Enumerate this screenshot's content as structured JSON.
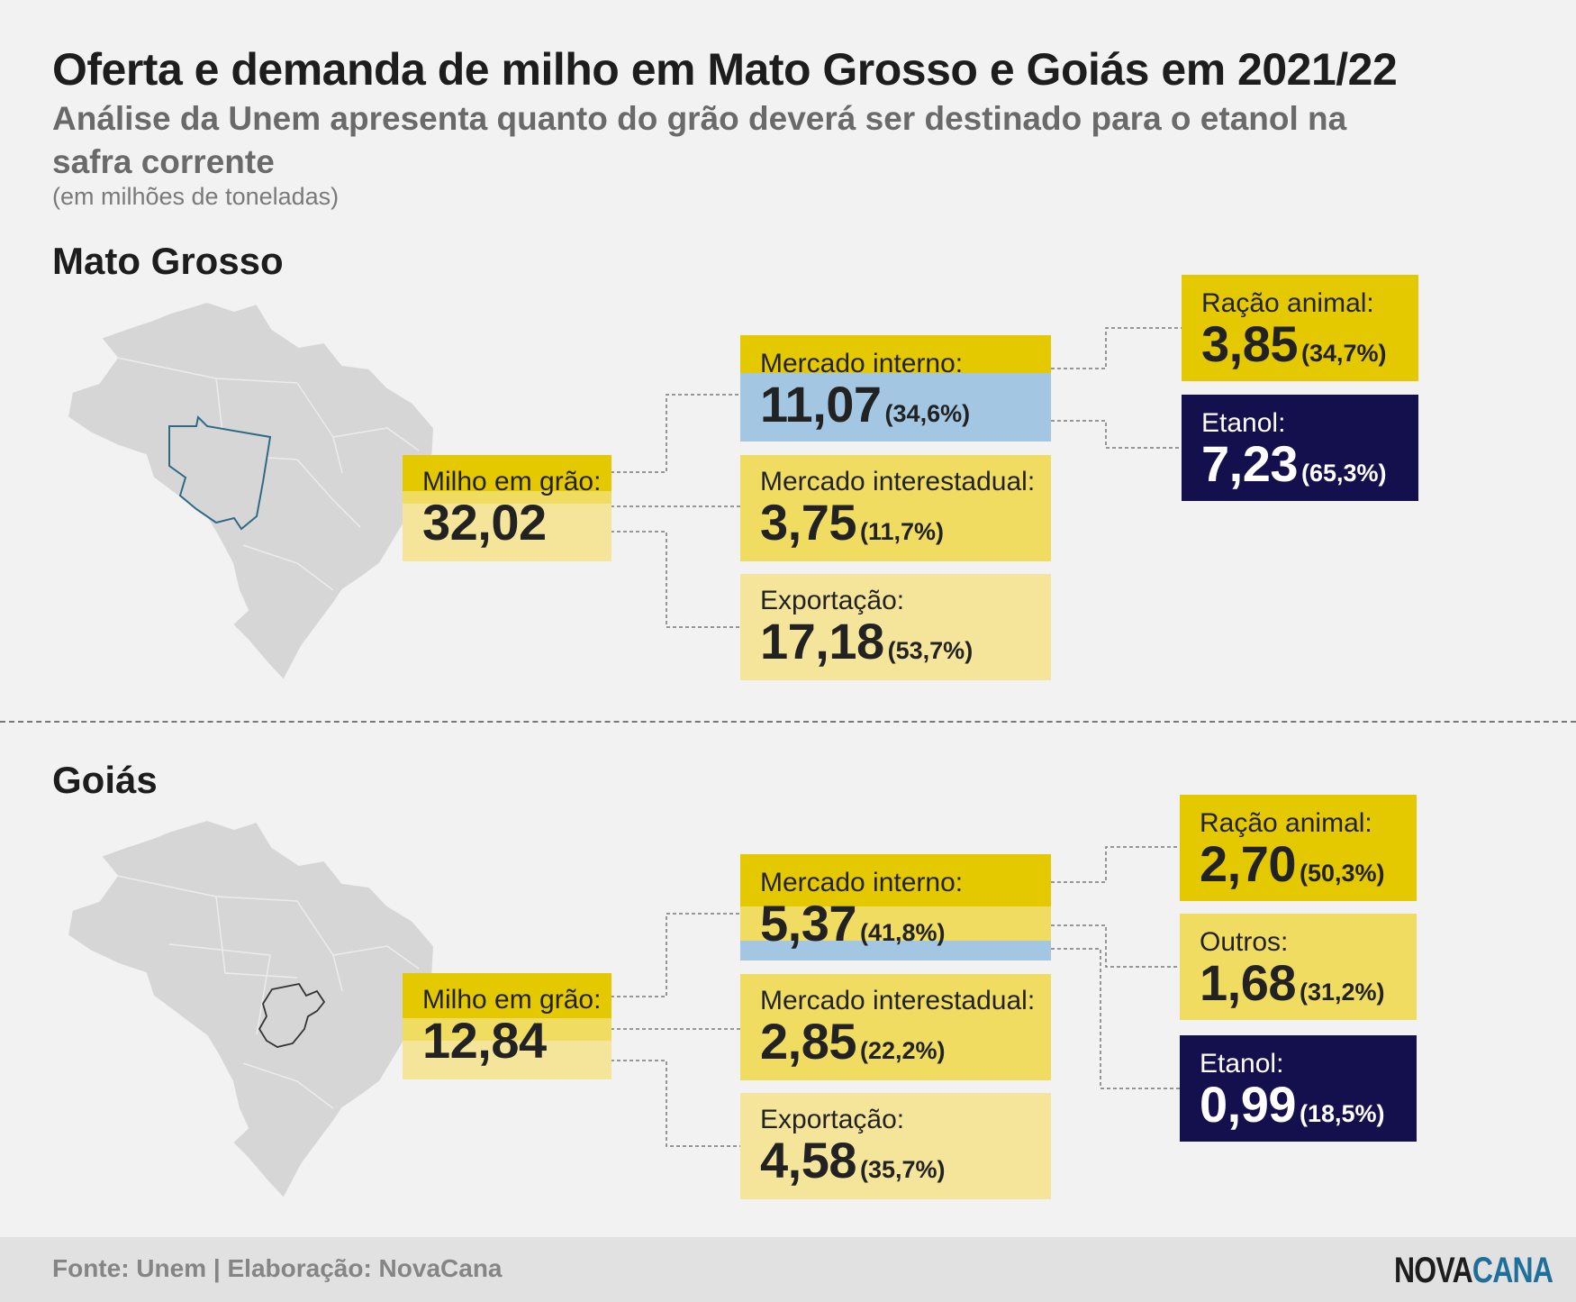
{
  "title": "Oferta e demanda de milho em Mato Grosso e Goiás em 2021/22",
  "subtitle": "Análise da Unem apresenta quanto do grão deverá ser destinado para o etanol na safra corrente",
  "unit": "(em milhões de toneladas)",
  "colors": {
    "dark_yellow": "#e4c800",
    "mid_yellow": "#efdc60",
    "light_yellow": "#f5e59a",
    "blue": "#a3c6e2",
    "navy": "#14104e",
    "map_gray": "#d6d6d6",
    "logo_blue": "#1f6f9c"
  },
  "sections": [
    {
      "name": "Mato Grosso",
      "map_icon": "brazil-map-mato-grosso-highlight",
      "milho": {
        "label": "Milho em grão:",
        "value": "32,02"
      },
      "mercado_interno": {
        "label": "Mercado interno:",
        "value": "11,07",
        "pct": "(34,6%)"
      },
      "mercado_interestadual": {
        "label": "Mercado interestadual:",
        "value": "3,75",
        "pct": "(11,7%)"
      },
      "exportacao": {
        "label": "Exportação:",
        "value": "17,18",
        "pct": "(53,7%)"
      },
      "destinations": [
        {
          "label": "Ração animal:",
          "value": "3,85",
          "pct": "(34,7%)",
          "style": "dark-yellow"
        },
        {
          "label": "Etanol:",
          "value": "7,23",
          "pct": "(65,3%)",
          "style": "navy"
        }
      ]
    },
    {
      "name": "Goiás",
      "map_icon": "brazil-map-goias-highlight",
      "milho": {
        "label": "Milho em grão:",
        "value": "12,84"
      },
      "mercado_interno": {
        "label": "Mercado interno:",
        "value": "5,37",
        "pct": "(41,8%)"
      },
      "mercado_interestadual": {
        "label": "Mercado interestadual:",
        "value": "2,85",
        "pct": "(22,2%)"
      },
      "exportacao": {
        "label": "Exportação:",
        "value": "4,58",
        "pct": "(35,7%)"
      },
      "destinations": [
        {
          "label": "Ração animal:",
          "value": "2,70",
          "pct": "(50,3%)",
          "style": "dark-yellow"
        },
        {
          "label": "Outros:",
          "value": "1,68",
          "pct": "(31,2%)",
          "style": "mid-yellow"
        },
        {
          "label": "Etanol:",
          "value": "0,99",
          "pct": "(18,5%)",
          "style": "navy"
        }
      ]
    }
  ],
  "footer": {
    "source": "Fonte: Unem | Elaboração: NovaCana",
    "logo_part1": "NOVA",
    "logo_part2": "CANA"
  }
}
